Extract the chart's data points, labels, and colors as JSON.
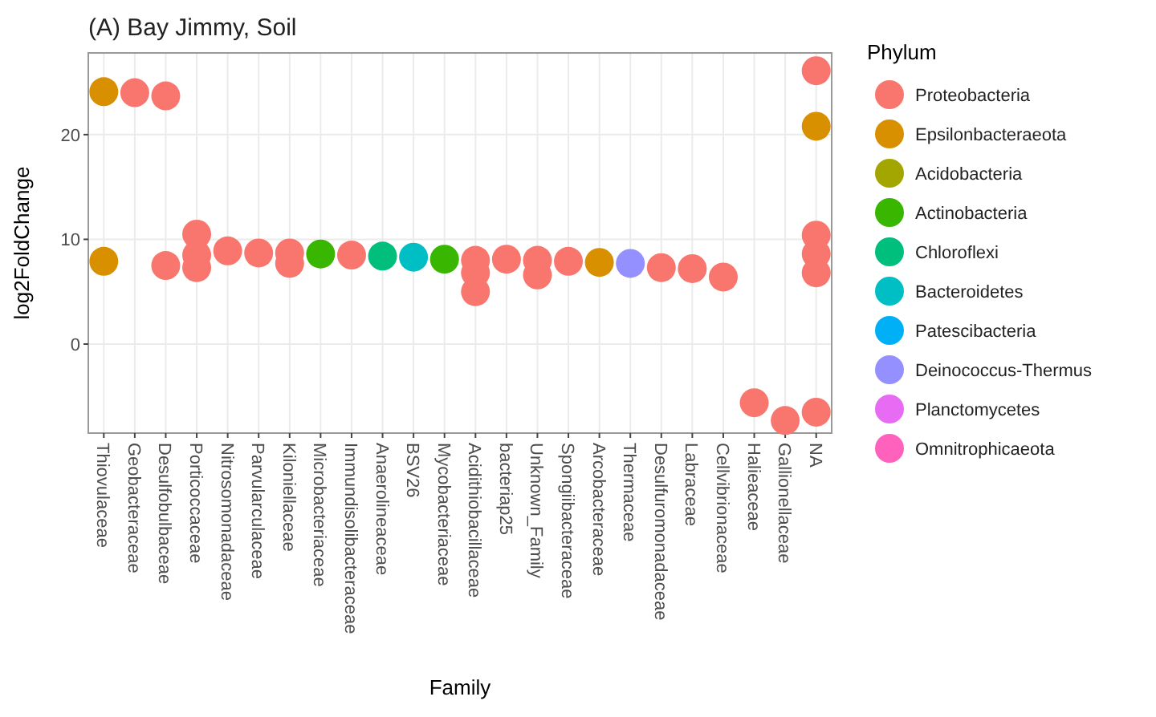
{
  "chart_data": {
    "type": "scatter",
    "title": "(A) Bay Jimmy, Soil",
    "xlabel": "Family",
    "ylabel": "log2FoldChange",
    "legend_title": "Phylum",
    "legend": "right",
    "grid": true,
    "marker": "circle",
    "categories": [
      "Thiovulaceae",
      "Geobacteraceae",
      "Desulfobulbaceae",
      "Porticoccaceae",
      "Nitrosomonadaceae",
      "Parvularculaceae",
      "Kiloniellaceae",
      "Microbacteriaceae",
      "Immundisolibacteraceae",
      "Anaerolineaceae",
      "BSV26",
      "Mycobacteriaceae",
      "Acidithiobacillaceae",
      "bacteriap25",
      "Unknown_Family",
      "Spongiibacteraceae",
      "Arcobacteraceae",
      "Thermaceae",
      "Desulfuromonadaceae",
      "Labraceae",
      "Cellvibrionaceae",
      "Halieaceae",
      "Gallionellaceae",
      "NA"
    ],
    "ylim": [
      -8.5,
      27.8
    ],
    "yticks": [
      0,
      10,
      20
    ],
    "series": [
      {
        "name": "Proteobacteria",
        "color": "#f8766d",
        "x": [
          "Geobacteraceae",
          "Desulfobulbaceae",
          "Desulfobulbaceae",
          "Porticoccaceae",
          "Porticoccaceae",
          "Porticoccaceae",
          "Nitrosomonadaceae",
          "Parvularculaceae",
          "Kiloniellaceae",
          "Kiloniellaceae",
          "Immundisolibacteraceae",
          "Acidithiobacillaceae",
          "Acidithiobacillaceae",
          "Acidithiobacillaceae",
          "bacteriap25",
          "Unknown_Family",
          "Unknown_Family",
          "Spongiibacteraceae",
          "Desulfuromonadaceae",
          "Labraceae",
          "Cellvibrionaceae",
          "Halieaceae",
          "Gallionellaceae",
          "NA",
          "NA",
          "NA",
          "NA",
          "NA"
        ],
        "values": [
          24.0,
          23.7,
          7.5,
          10.5,
          8.5,
          7.3,
          8.9,
          8.7,
          8.7,
          7.7,
          8.5,
          8.0,
          6.8,
          5.0,
          8.1,
          8.0,
          6.6,
          7.9,
          7.3,
          7.2,
          6.4,
          -5.6,
          -7.3,
          26.1,
          10.4,
          8.6,
          6.8,
          -6.5
        ]
      },
      {
        "name": "Epsilonbacteraeota",
        "color": "#d89000",
        "x": [
          "Thiovulaceae",
          "Thiovulaceae",
          "Arcobacteraceae",
          "NA"
        ],
        "values": [
          24.1,
          7.9,
          7.8,
          20.8
        ]
      },
      {
        "name": "Acidobacteria",
        "color": "#a3a500",
        "values": [
          null,
          null,
          null,
          null,
          null,
          null,
          null,
          null,
          null,
          null,
          null,
          null,
          null,
          null,
          null,
          null,
          null,
          null,
          null,
          null,
          null,
          null,
          null,
          null
        ]
      },
      {
        "name": "Actinobacteria",
        "color": "#39b600",
        "x": [
          "Microbacteriaceae",
          "Mycobacteriaceae"
        ],
        "values": [
          8.6,
          8.1
        ]
      },
      {
        "name": "Chloroflexi",
        "color": "#00bf7d",
        "x": [
          "Anaerolineaceae"
        ],
        "values": [
          8.4
        ]
      },
      {
        "name": "Bacteroidetes",
        "color": "#00bfc4",
        "x": [
          "BSV26"
        ],
        "values": [
          8.3
        ]
      },
      {
        "name": "Patescibacteria",
        "color": "#00b0f6",
        "values": [
          null,
          null,
          null,
          null,
          null,
          null,
          null,
          null,
          null,
          null,
          null,
          null,
          null,
          null,
          null,
          null,
          null,
          null,
          null,
          null,
          null,
          null,
          null,
          null
        ]
      },
      {
        "name": "Deinococcus-Thermus",
        "color": "#9590ff",
        "x": [
          "Thermaceae"
        ],
        "values": [
          7.7
        ]
      },
      {
        "name": "Planctomycetes",
        "color": "#e76bf3",
        "values": [
          null,
          null,
          null,
          null,
          null,
          null,
          null,
          null,
          null,
          null,
          null,
          null,
          null,
          null,
          null,
          null,
          null,
          null,
          null,
          null,
          null,
          null,
          null,
          null
        ]
      },
      {
        "name": "Omnitrophicaeota",
        "color": "#ff62bc",
        "values": [
          null,
          null,
          null,
          null,
          null,
          null,
          null,
          null,
          null,
          null,
          null,
          null,
          null,
          null,
          null,
          null,
          null,
          null,
          null,
          null,
          null,
          null,
          null,
          null
        ]
      }
    ]
  }
}
